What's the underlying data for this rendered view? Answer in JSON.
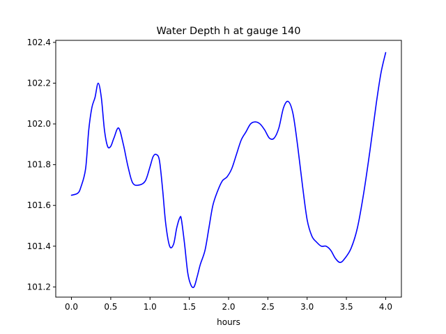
{
  "chart_data": {
    "type": "line",
    "title": "Water Depth h at gauge 140",
    "xlabel": "hours",
    "ylabel": "",
    "xlim": [
      -0.2,
      4.2
    ],
    "ylim": [
      101.15,
      102.41
    ],
    "xticks": [
      0.0,
      0.5,
      1.0,
      1.5,
      2.0,
      2.5,
      3.0,
      3.5,
      4.0
    ],
    "xtick_labels": [
      "0.0",
      "0.5",
      "1.0",
      "1.5",
      "2.0",
      "2.5",
      "3.0",
      "3.5",
      "4.0"
    ],
    "yticks": [
      101.2,
      101.4,
      101.6,
      101.8,
      102.0,
      102.2,
      102.4
    ],
    "ytick_labels": [
      "101.2",
      "101.4",
      "101.6",
      "101.8",
      "102.0",
      "102.2",
      "102.4"
    ],
    "grid": false,
    "legend": "none",
    "series": [
      {
        "color": "#0000ff",
        "x": [
          0.0,
          0.08,
          0.12,
          0.18,
          0.22,
          0.26,
          0.3,
          0.34,
          0.38,
          0.42,
          0.46,
          0.5,
          0.54,
          0.6,
          0.66,
          0.72,
          0.78,
          0.86,
          0.94,
          1.0,
          1.04,
          1.08,
          1.12,
          1.16,
          1.2,
          1.25,
          1.3,
          1.34,
          1.38,
          1.4,
          1.44,
          1.48,
          1.52,
          1.56,
          1.6,
          1.64,
          1.7,
          1.75,
          1.8,
          1.86,
          1.92,
          1.98,
          2.04,
          2.1,
          2.16,
          2.22,
          2.28,
          2.34,
          2.4,
          2.46,
          2.52,
          2.58,
          2.64,
          2.7,
          2.76,
          2.82,
          2.88,
          2.94,
          3.0,
          3.06,
          3.12,
          3.18,
          3.24,
          3.3,
          3.36,
          3.42,
          3.48,
          3.56,
          3.64,
          3.72,
          3.8,
          3.88,
          3.94,
          4.0
        ],
        "y": [
          101.65,
          101.66,
          101.69,
          101.78,
          101.97,
          102.08,
          102.13,
          102.2,
          102.13,
          101.97,
          101.89,
          101.89,
          101.93,
          101.98,
          101.9,
          101.79,
          101.71,
          101.7,
          101.72,
          101.79,
          101.84,
          101.85,
          101.82,
          101.68,
          101.51,
          101.4,
          101.41,
          101.49,
          101.54,
          101.53,
          101.41,
          101.27,
          101.21,
          101.2,
          101.25,
          101.31,
          101.38,
          101.49,
          101.6,
          101.67,
          101.72,
          101.74,
          101.78,
          101.85,
          101.92,
          101.96,
          102.0,
          102.01,
          102.0,
          101.97,
          101.93,
          101.93,
          101.98,
          102.08,
          102.11,
          102.05,
          101.89,
          101.7,
          101.53,
          101.45,
          101.42,
          101.4,
          101.4,
          101.38,
          101.34,
          101.32,
          101.34,
          101.39,
          101.49,
          101.66,
          101.87,
          102.1,
          102.25,
          102.35
        ]
      }
    ]
  }
}
